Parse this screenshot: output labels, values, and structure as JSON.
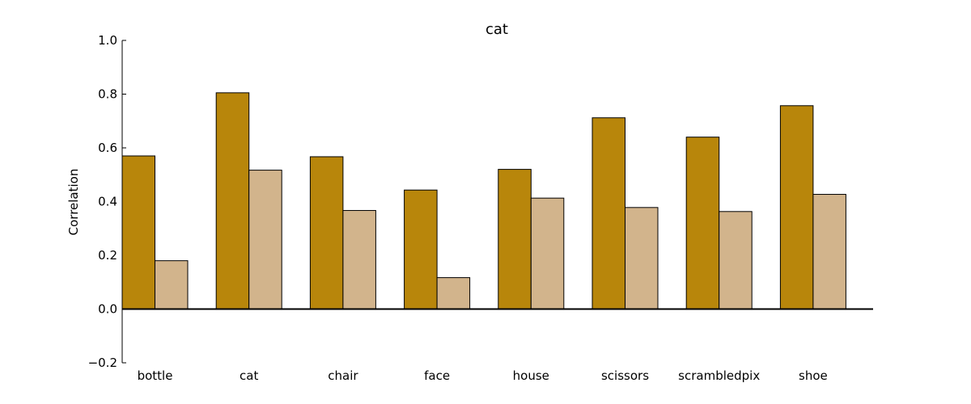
{
  "chart_data": {
    "type": "bar",
    "title": "cat",
    "xlabel": "",
    "ylabel": "Correlation",
    "categories": [
      "bottle",
      "cat",
      "chair",
      "face",
      "house",
      "scissors",
      "scrambledpix",
      "shoe"
    ],
    "series": [
      {
        "values": [
          0.57,
          0.805,
          0.567,
          0.443,
          0.52,
          0.712,
          0.64,
          0.757
        ]
      },
      {
        "values": [
          0.18,
          0.517,
          0.367,
          0.117,
          0.413,
          0.378,
          0.363,
          0.427
        ]
      }
    ],
    "ylim": [
      -0.2,
      1.0
    ],
    "yticks": [
      "−0.2",
      "0.0",
      "0.2",
      "0.4",
      "0.6",
      "0.8",
      "1.0"
    ],
    "ytick_values": [
      -0.2,
      0.0,
      0.2,
      0.4,
      0.6,
      0.8,
      1.0
    ],
    "colors": [
      "#b8860b",
      "#d2b48c"
    ],
    "grid": false,
    "legend": "none"
  }
}
